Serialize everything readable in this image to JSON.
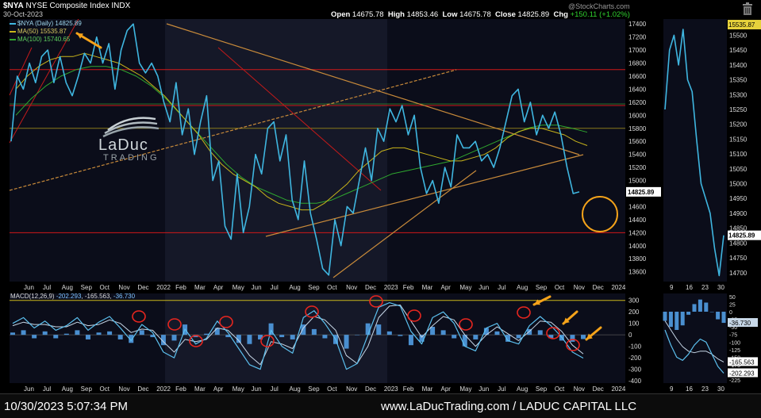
{
  "header": {
    "symbol": "$NYA",
    "name": "NYSE Composite Index INDX",
    "date": "30-Oct-2023",
    "brand": "@StockCharts.com",
    "open_label": "Open",
    "open": "14675.78",
    "high_label": "High",
    "high": "14853.46",
    "low_label": "Low",
    "low": "14675.78",
    "close_label": "Close",
    "close": "14825.89",
    "chg_label": "Chg",
    "chg": "+150.11 (+1.02%)"
  },
  "legend": {
    "price": "$NYA (Daily) 14825.89",
    "ma50": "MA(50) 15535.87",
    "ma100": "MA(100) 15740.65"
  },
  "macd_label": {
    "name": "MACD(12,26,9)",
    "v1": "-202.293",
    "v2": "-165.563",
    "v3": "-36.730"
  },
  "logo": {
    "line1": "LaDuc",
    "line2": "TRADING"
  },
  "footer": {
    "timestamp": "10/30/2023 5:07:34 PM",
    "site": "www.LaDucTrading.com / LADUC CAPITAL LLC"
  },
  "colors": {
    "price": "#3fb6e0",
    "ma50": "#c9b51a",
    "ma100": "#2fa82f",
    "hline": "#d01818",
    "trend": "#c88a3a",
    "circle_orange": "#f5a31a",
    "circle_red": "#e8261f",
    "macd_hist": "#4a8fd0"
  },
  "chart_data": {
    "type": "line",
    "main": {
      "yticks": [
        13600,
        13800,
        14000,
        14200,
        14400,
        14600,
        14800,
        15000,
        15200,
        15400,
        15600,
        15800,
        16000,
        16200,
        16400,
        16600,
        16800,
        17000,
        17200,
        17400
      ],
      "ylim": [
        13450,
        17500
      ],
      "xlabels": [
        "Jun",
        "Jul",
        "Aug",
        "Sep",
        "Oct",
        "Nov",
        "Dec",
        "2022",
        "Feb",
        "Mar",
        "Apr",
        "May",
        "Jun",
        "Jul",
        "Aug",
        "Sep",
        "Oct",
        "Nov",
        "Dec",
        "2023",
        "Feb",
        "Mar",
        "Apr",
        "May",
        "Jun",
        "Jul",
        "Aug",
        "Sep",
        "Oct",
        "Nov",
        "Dec",
        "2024"
      ],
      "hlines": [
        16700,
        16150,
        15800,
        14200
      ],
      "price": [
        15600,
        16600,
        16400,
        16800,
        16500,
        16900,
        17000,
        16500,
        16900,
        16500,
        16300,
        16600,
        16950,
        16800,
        17200,
        16800,
        17100,
        16400,
        17000,
        17300,
        17400,
        16800,
        16650,
        16800,
        16600,
        16200,
        15900,
        16500,
        15700,
        16100,
        15400,
        15900,
        16300,
        15000,
        15300,
        14300,
        14100,
        15100,
        14200,
        14600,
        15400,
        15100,
        15800,
        15900,
        15300,
        15700,
        14700,
        14400,
        15300,
        14500,
        14100,
        13650,
        13550,
        14400,
        14000,
        14600,
        14500,
        15000,
        15500,
        15000,
        15800,
        15600,
        16100,
        15900,
        16150,
        15700,
        16000,
        15200,
        14800,
        15000,
        14650,
        15200,
        14900,
        15700,
        15500,
        15500,
        15600,
        15300,
        15400,
        15200,
        15500,
        15900,
        16300,
        16400,
        15900,
        16200,
        15700,
        16000,
        15800,
        16050,
        15700,
        15200,
        14800,
        14825.89
      ],
      "ma50": [
        16400,
        16600,
        16750,
        16850,
        16900,
        16900,
        16950,
        16900,
        16850,
        16800,
        16700,
        16600,
        16450,
        16300,
        16100,
        15900,
        15700,
        15450,
        15250,
        15100,
        15000,
        14900,
        14750,
        14650,
        14600,
        14550,
        14550,
        14650,
        14800,
        14950,
        15150,
        15300,
        15450,
        15500,
        15500,
        15450,
        15400,
        15350,
        15300,
        15300,
        15350,
        15400,
        15500,
        15650,
        15750,
        15800,
        15800,
        15750,
        15700,
        15600,
        15535.87
      ],
      "ma100": [
        16000,
        16250,
        16450,
        16600,
        16700,
        16750,
        16750,
        16700,
        16600,
        16450,
        16250,
        16000,
        15750,
        15500,
        15250,
        15050,
        14900,
        14800,
        14700,
        14650,
        14650,
        14700,
        14800,
        14900,
        15000,
        15100,
        15150,
        15200,
        15250,
        15300,
        15400,
        15500,
        15600,
        15700,
        15800,
        15850,
        15850,
        15800,
        15740.65
      ],
      "zoom_yticks": [
        14700,
        14750,
        14800,
        14850,
        14900,
        14950,
        15000,
        15050,
        15100,
        15150,
        15200,
        15250,
        15300,
        15350,
        15400,
        15450,
        15500
      ],
      "zoom_xlabels": [
        "9",
        "16",
        "23",
        "30"
      ],
      "zoom_price": [
        15250,
        15450,
        15500,
        15400,
        15520,
        15350,
        15310,
        15150,
        15000,
        14950,
        14900,
        14780,
        14690,
        14825.89
      ],
      "zoom_ylim": [
        14670,
        15560
      ]
    },
    "macd": {
      "yticks": [
        -400,
        -300,
        -200,
        -100,
        0,
        100,
        200,
        300
      ],
      "ylim": [
        -420,
        360
      ],
      "xlabels": [
        "Jun",
        "Jul",
        "Aug",
        "Sep",
        "Oct",
        "Nov",
        "Dec",
        "2022",
        "Feb",
        "Mar",
        "Apr",
        "May",
        "Jun",
        "Jul",
        "Aug",
        "Sep",
        "Oct",
        "Nov",
        "Dec",
        "2023",
        "Feb",
        "Mar",
        "Apr",
        "May",
        "Jun",
        "Jul",
        "Aug",
        "Sep",
        "Oct",
        "Nov",
        "Dec",
        "2024"
      ],
      "macd": [
        100,
        150,
        60,
        120,
        40,
        80,
        150,
        40,
        110,
        160,
        60,
        -50,
        90,
        20,
        -150,
        -200,
        50,
        -80,
        -30,
        120,
        20,
        -120,
        -260,
        -300,
        40,
        -100,
        -160,
        150,
        210,
        100,
        -40,
        -300,
        -250,
        0,
        240,
        280,
        250,
        30,
        -80,
        150,
        200,
        100,
        -100,
        -140,
        60,
        100,
        -50,
        -80,
        80,
        160,
        80,
        -20,
        -150,
        -202.293
      ],
      "signal": [
        80,
        110,
        90,
        90,
        70,
        70,
        110,
        80,
        90,
        130,
        100,
        20,
        50,
        40,
        -60,
        -150,
        -40,
        -60,
        -40,
        60,
        40,
        -50,
        -180,
        -260,
        -60,
        -80,
        -120,
        60,
        160,
        130,
        40,
        -180,
        -250,
        -100,
        150,
        250,
        260,
        120,
        -20,
        80,
        160,
        130,
        0,
        -100,
        0,
        70,
        10,
        -50,
        30,
        120,
        110,
        30,
        -90,
        -165.563
      ],
      "zoom_yticks": [
        -225,
        -200,
        -175,
        -150,
        -125,
        -100,
        -75,
        -50,
        -25,
        0,
        25,
        50
      ],
      "zoom_xlabels": [
        "9",
        "16",
        "23",
        "30"
      ],
      "zoom_ylim": [
        -235,
        60
      ],
      "zoom_macd": [
        -60,
        -110,
        -150,
        -160,
        -140,
        -110,
        -90,
        -100,
        -140,
        -180,
        -202.293
      ],
      "zoom_signal": [
        -30,
        -60,
        -90,
        -115,
        -130,
        -135,
        -130,
        -130,
        -140,
        -155,
        -165.563
      ]
    }
  }
}
